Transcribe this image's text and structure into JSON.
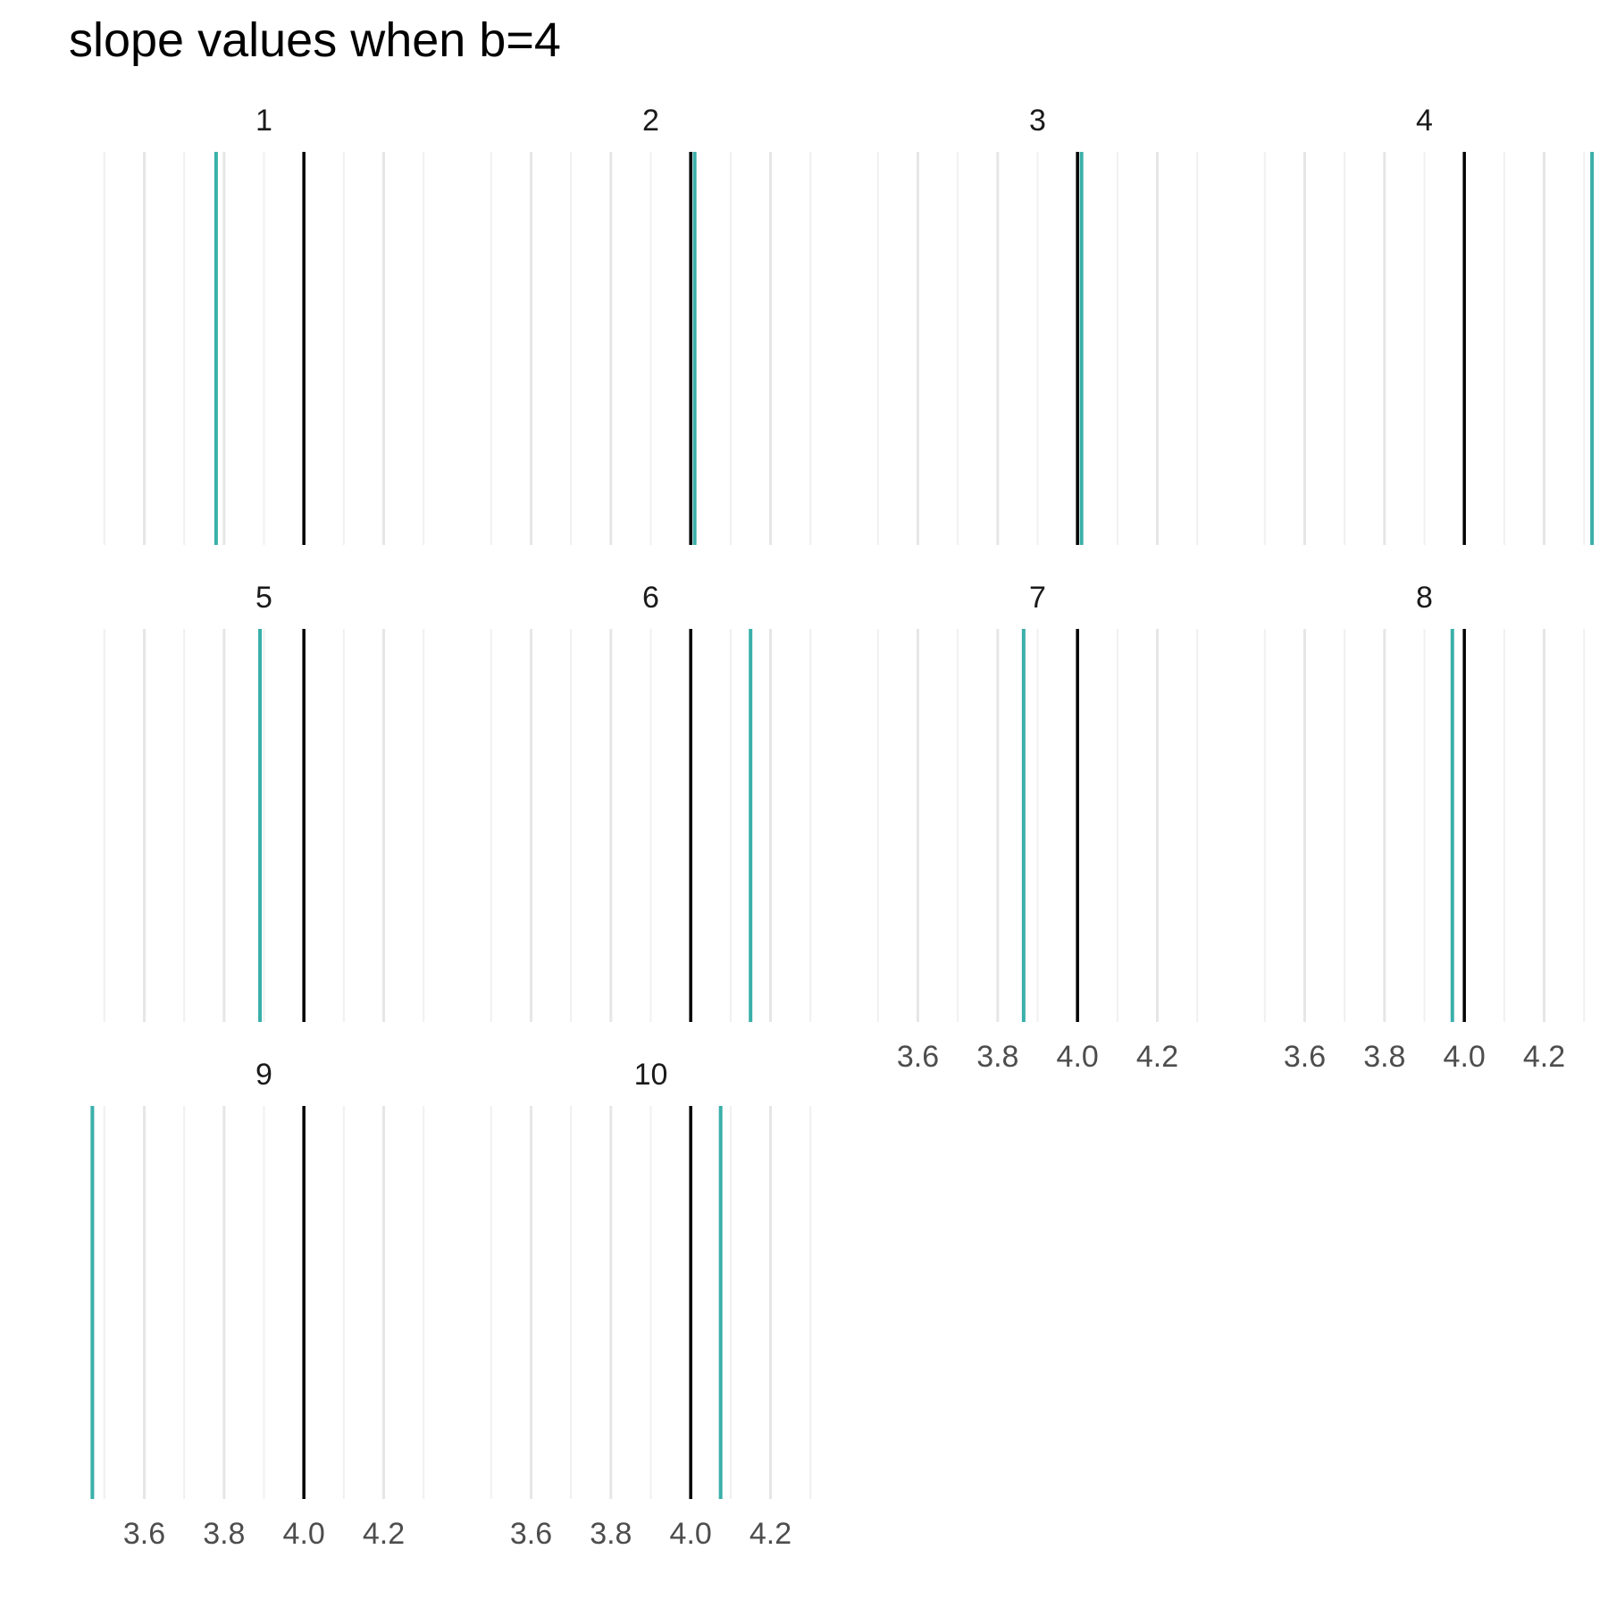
{
  "chart_data": {
    "type": "facet-vline",
    "title": "slope values when b=4",
    "xlabel": "",
    "ylabel": "",
    "xlim": [
      3.44,
      4.36
    ],
    "x_ticks": [
      3.6,
      3.8,
      4.0,
      4.2
    ],
    "x_tick_labels": [
      "3.6",
      "3.8",
      "4.0",
      "4.2"
    ],
    "grid": true,
    "facet_columns": 4,
    "reference_value": 4.0,
    "reference_color": "#000000",
    "estimate_color": "#3aafa9",
    "panels": [
      {
        "label": "1",
        "estimate": 3.78
      },
      {
        "label": "2",
        "estimate": 4.01
      },
      {
        "label": "3",
        "estimate": 4.01
      },
      {
        "label": "4",
        "estimate": 4.32
      },
      {
        "label": "5",
        "estimate": 3.89
      },
      {
        "label": "6",
        "estimate": 4.15
      },
      {
        "label": "7",
        "estimate": 3.865
      },
      {
        "label": "8",
        "estimate": 3.97
      },
      {
        "label": "9",
        "estimate": 3.47
      },
      {
        "label": "10",
        "estimate": 4.075
      }
    ]
  }
}
